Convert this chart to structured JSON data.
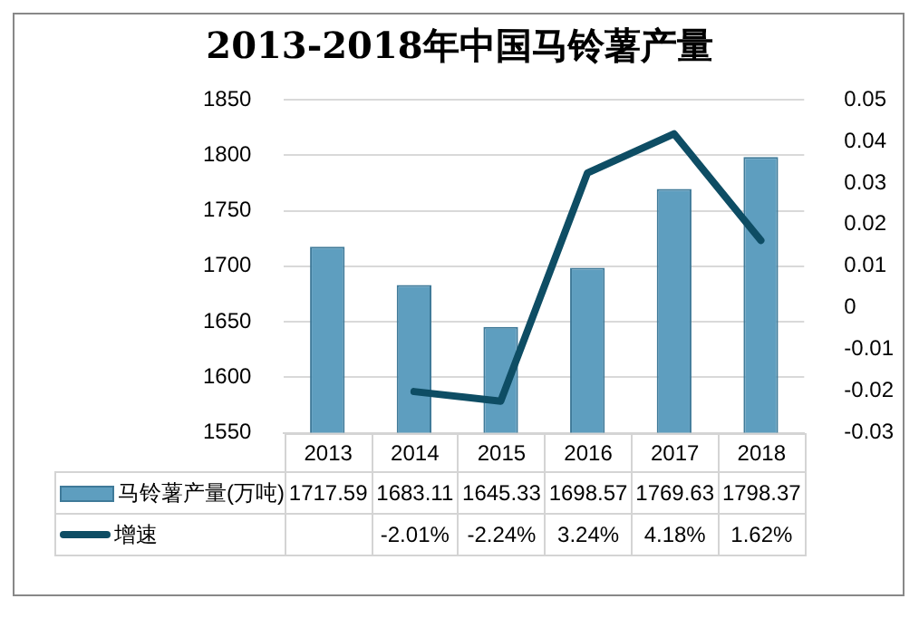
{
  "chart_data": {
    "type": "bar",
    "title": "2013-2018年中国马铃薯产量",
    "categories": [
      "2013",
      "2014",
      "2015",
      "2016",
      "2017",
      "2018"
    ],
    "series": [
      {
        "name": "马铃薯产量(万吨)",
        "color": "#5e9ebf",
        "values": [
          1717.59,
          1683.11,
          1645.33,
          1698.57,
          1769.63,
          1798.37
        ],
        "value_labels": [
          "1717.59",
          "1683.11",
          "1645.33",
          "1698.57",
          "1769.63",
          "1798.37"
        ]
      },
      {
        "name": "增速",
        "type": "line",
        "axis": "y2",
        "color": "#0e4d64",
        "values": [
          null,
          -0.0201,
          -0.0224,
          0.0324,
          0.0418,
          0.0162
        ],
        "value_labels": [
          null,
          "-2.01%",
          "-2.24%",
          "3.24%",
          "4.18%",
          "1.62%"
        ]
      }
    ],
    "ylim": [
      1550,
      1850
    ],
    "yticks": [
      1550,
      1600,
      1650,
      1700,
      1750,
      1800,
      1850
    ],
    "y2lim": [
      -0.03,
      0.05
    ],
    "y2ticks": [
      -0.03,
      -0.02,
      -0.01,
      0,
      0.01,
      0.02,
      0.03,
      0.04,
      0.05
    ],
    "grid": "y",
    "legend": "bottom",
    "marker": "none",
    "line_style": "solid"
  }
}
